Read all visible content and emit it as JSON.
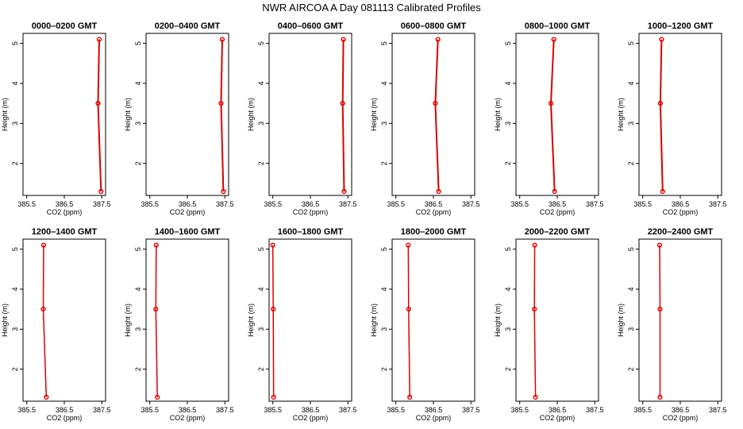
{
  "title": "NWR AIRCOA A  Day 081113  Calibrated Profiles",
  "chart_data": {
    "type": "line",
    "title": "NWR AIRCOA A  Day 081113  Calibrated Profiles",
    "xlabel": "CO2 (ppm)",
    "ylabel": "Height (m)",
    "xlim": [
      385.4,
      387.6
    ],
    "ylim": [
      1.2,
      5.25
    ],
    "x_ticks": [
      385.5,
      386.5,
      387.5
    ],
    "x_tick_labels": [
      "385.5",
      "386.5",
      "387.5"
    ],
    "y_ticks": [
      2,
      3,
      4,
      5
    ],
    "y_tick_labels": [
      "2",
      "3",
      "4",
      "5"
    ],
    "grid": false,
    "heights": [
      5.1,
      3.5,
      1.3
    ],
    "panels": [
      {
        "title": "0000–0200 GMT",
        "co2": [
          387.43,
          387.4,
          387.48
        ]
      },
      {
        "title": "0200–0400 GMT",
        "co2": [
          387.43,
          387.4,
          387.46
        ]
      },
      {
        "title": "0400–0600 GMT",
        "co2": [
          387.38,
          387.36,
          387.4
        ]
      },
      {
        "title": "0600–0800 GMT",
        "co2": [
          386.62,
          386.55,
          386.64
        ]
      },
      {
        "title": "0800–1000 GMT",
        "co2": [
          386.41,
          386.33,
          386.43
        ]
      },
      {
        "title": "1000–1200 GMT",
        "co2": [
          386.0,
          385.97,
          386.03
        ]
      },
      {
        "title": "1200–1400 GMT",
        "co2": [
          385.95,
          385.94,
          386.02
        ]
      },
      {
        "title": "1400–1600 GMT",
        "co2": [
          385.67,
          385.66,
          385.7
        ]
      },
      {
        "title": "1600–1800 GMT",
        "co2": [
          385.5,
          385.51,
          385.52
        ]
      },
      {
        "title": "1800–2000 GMT",
        "co2": [
          385.83,
          385.84,
          385.87
        ]
      },
      {
        "title": "2000–2200 GMT",
        "co2": [
          385.9,
          385.89,
          385.92
        ]
      },
      {
        "title": "2200–2400 GMT",
        "co2": [
          385.95,
          385.96,
          385.96
        ]
      }
    ]
  }
}
